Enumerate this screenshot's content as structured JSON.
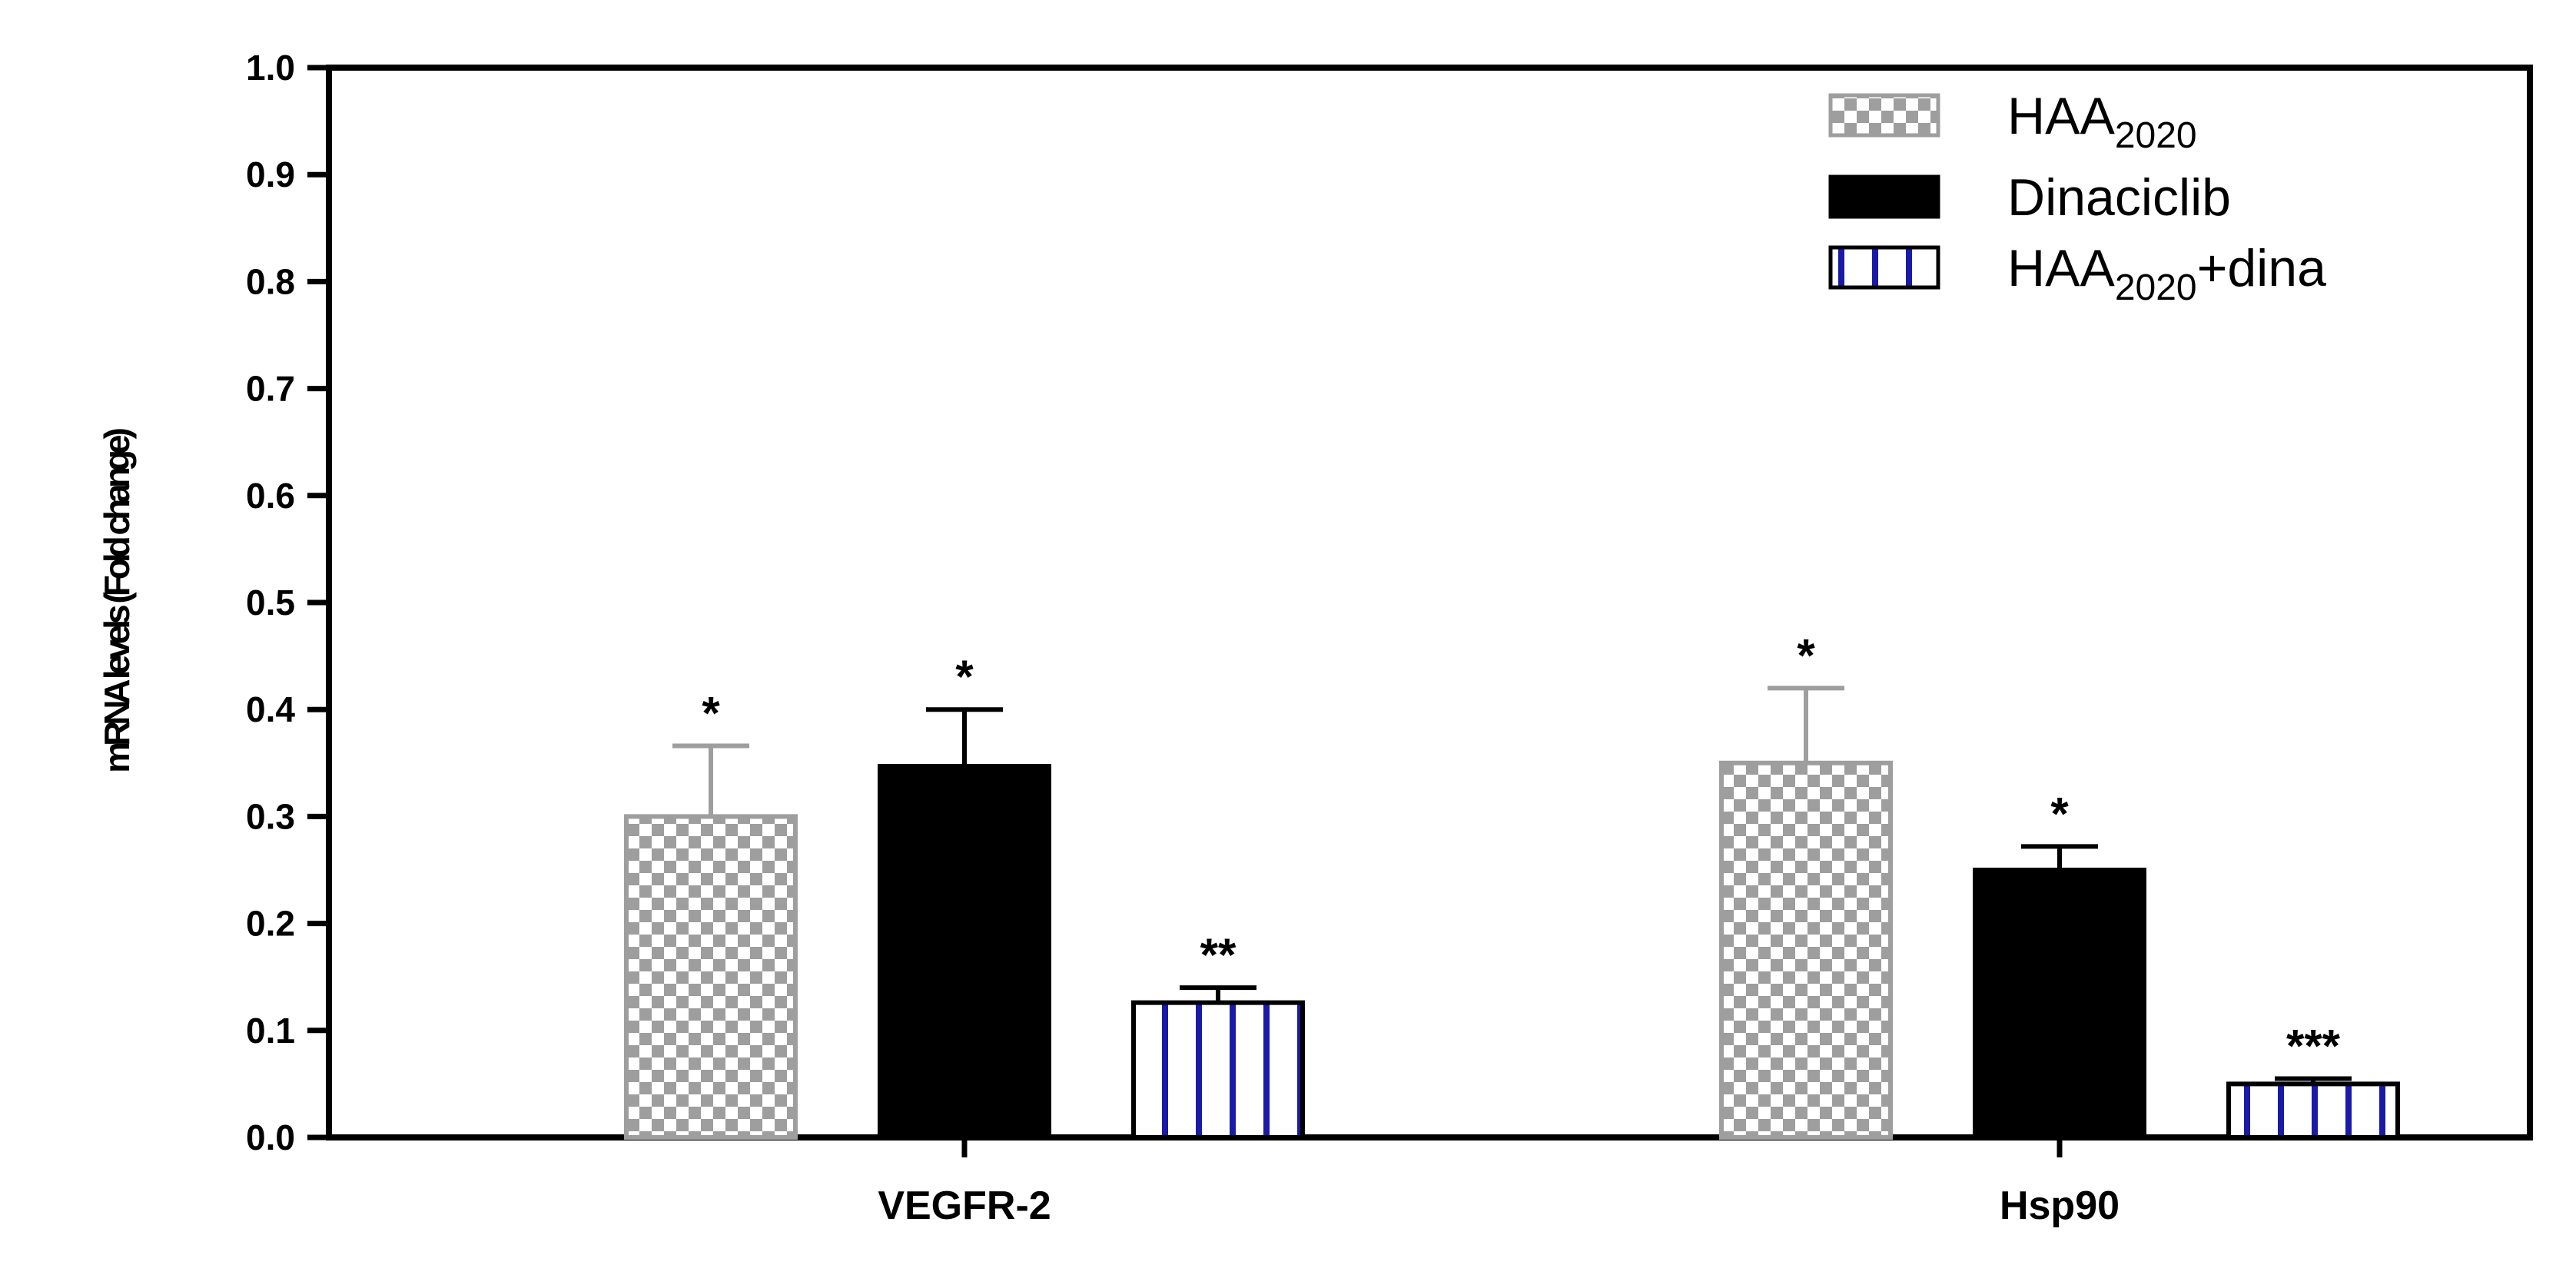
{
  "chart_data": {
    "type": "bar",
    "categories": [
      "VEGFR-2",
      "Hsp90"
    ],
    "ylabel": "mRNA levels (Fold change)",
    "ylim": [
      0.0,
      1.0
    ],
    "yticks": [
      "0.0",
      "0.1",
      "0.2",
      "0.3",
      "0.4",
      "0.5",
      "0.6",
      "0.7",
      "0.8",
      "0.9",
      "1.0"
    ],
    "legend_position": "top-right",
    "series": [
      {
        "name": "HAA2020",
        "name_main": "HAA",
        "name_sub": "2020",
        "name_suffix": "",
        "values": [
          0.3,
          0.35
        ],
        "errors": [
          0.066,
          0.07
        ],
        "significance": [
          "*",
          "*"
        ],
        "pattern": "checker",
        "color": "#9e9e9e"
      },
      {
        "name": "Dinaciclib",
        "name_main": "Dinaciclib",
        "name_sub": "",
        "name_suffix": "",
        "values": [
          0.347,
          0.25
        ],
        "errors": [
          0.053,
          0.022
        ],
        "significance": [
          "*",
          "*"
        ],
        "pattern": "solid",
        "color": "#000000"
      },
      {
        "name": "HAA2020+dina",
        "name_main": "HAA",
        "name_sub": "2020",
        "name_suffix": "+dina",
        "values": [
          0.126,
          0.05
        ],
        "errors": [
          0.014,
          0.005
        ],
        "significance": [
          "**",
          "***"
        ],
        "pattern": "vertical-stripes",
        "color": "#1a1aa8"
      }
    ]
  }
}
